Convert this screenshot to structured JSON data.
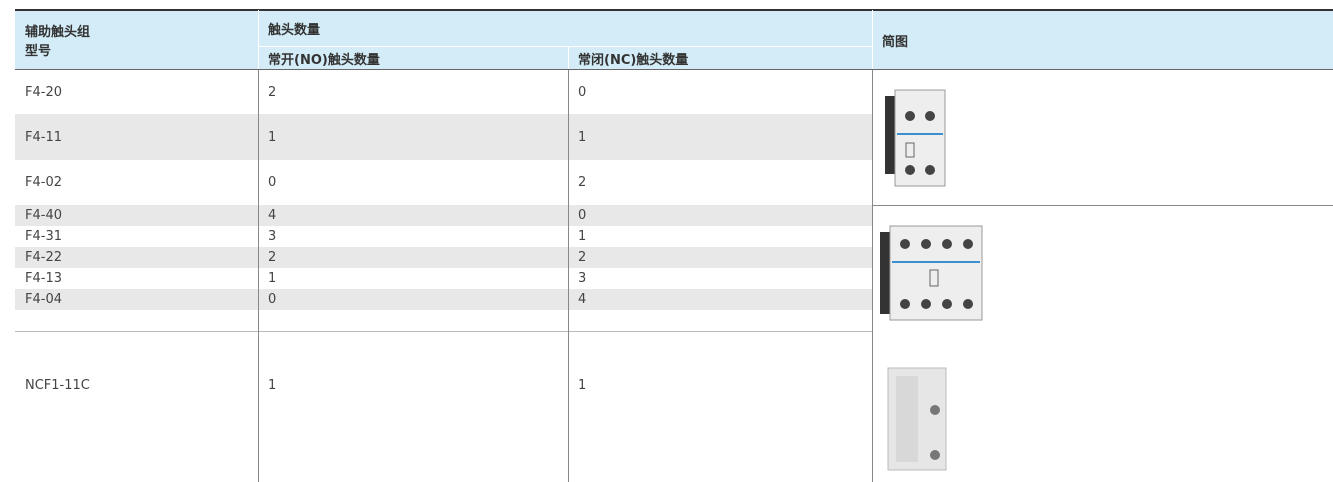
{
  "table": {
    "header": {
      "model": [
        "辅助触头组",
        "型号"
      ],
      "group": "触头数量",
      "no": "常开(NO)触头数量",
      "nc": "常闭(NC)触头数量",
      "image": "简图"
    },
    "rows": [
      [
        "F4-20",
        "2",
        "0"
      ],
      [
        "F4-11",
        "1",
        "1"
      ],
      [
        "F4-02",
        "0",
        "2"
      ],
      [
        "F4-40",
        "4",
        "0"
      ],
      [
        "F4-31",
        "3",
        "1"
      ],
      [
        "F4-22",
        "2",
        "2"
      ],
      [
        "F4-13",
        "1",
        "3"
      ],
      [
        "F4-04",
        "0",
        "4"
      ],
      [
        "NCF1-11C",
        "1",
        "1"
      ]
    ]
  }
}
